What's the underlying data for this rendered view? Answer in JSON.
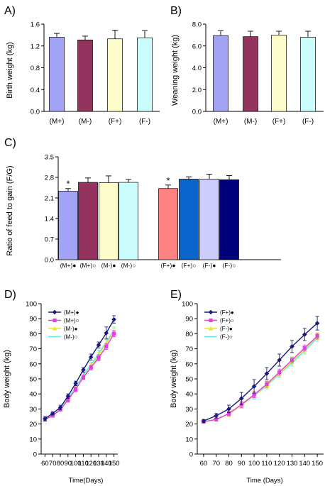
{
  "chart_data": [
    {
      "panel": "A)",
      "type": "bar",
      "ylabel": "Birth weight (kg)",
      "ylim": [
        0,
        1.6
      ],
      "yticks": [
        "0.0",
        "0.4",
        "0.8",
        "1.2",
        "1.6"
      ],
      "categories": [
        "(M+)",
        "(M-)",
        "(F+)",
        "(F-)"
      ],
      "values": [
        1.36,
        1.31,
        1.33,
        1.35
      ],
      "errors": [
        0.07,
        0.07,
        0.16,
        0.13
      ],
      "colors": [
        "#a3a3f5",
        "#93335e",
        "#fdfdcc",
        "#ccfdfd"
      ]
    },
    {
      "panel": "B)",
      "type": "bar",
      "ylabel": "Weaning weight (kg)",
      "ylim": [
        0,
        8.0
      ],
      "yticks": [
        "0.0",
        "2.0",
        "4.0",
        "6.0",
        "8.0"
      ],
      "categories": [
        "(M+)",
        "(M-)",
        "(F+)",
        "(F-)"
      ],
      "values": [
        6.95,
        6.85,
        7.0,
        6.8
      ],
      "errors": [
        0.45,
        0.5,
        0.35,
        0.55
      ],
      "colors": [
        "#a3a3f5",
        "#93335e",
        "#fdfdcc",
        "#ccfdfd"
      ]
    },
    {
      "panel": "C)",
      "type": "bar",
      "ylabel": "Ratio of feed to gain (F/G)",
      "ylim": [
        0,
        3.5
      ],
      "yticks": [
        "0.0",
        "0.7",
        "1.4",
        "2.1",
        "2.8",
        "3.5"
      ],
      "categories": [
        "(M+)●",
        "(M+)○",
        "(M-)●",
        "(M-)○",
        "(F+)●",
        "(F+)○",
        "(F-)●",
        "(F-)○"
      ],
      "values": [
        2.33,
        2.63,
        2.62,
        2.63,
        2.42,
        2.74,
        2.74,
        2.72
      ],
      "errors": [
        0.09,
        0.15,
        0.23,
        0.1,
        0.12,
        0.08,
        0.17,
        0.14
      ],
      "significance": [
        "*",
        "",
        "",
        "",
        "*",
        "",
        "",
        ""
      ],
      "colors": [
        "#a3a3f5",
        "#93335e",
        "#fdfdcc",
        "#ccfdfd",
        "#fd8282",
        "#0a66cc",
        "#ccccfd",
        "#00007a"
      ]
    },
    {
      "panel": "D)",
      "type": "line",
      "xlabel": "Time(Days)",
      "ylabel": "Body weight (kg)",
      "xlim": [
        55,
        155
      ],
      "ylim": [
        0,
        100
      ],
      "x": [
        60,
        70,
        80,
        90,
        100,
        110,
        120,
        130,
        140,
        150
      ],
      "xticks": [
        "60",
        "70",
        "80",
        "90",
        "100",
        "110",
        "120",
        "130",
        "140",
        "150"
      ],
      "yticks": [
        "0",
        "10",
        "20",
        "30",
        "40",
        "50",
        "60",
        "70",
        "80",
        "90",
        "100"
      ],
      "series": [
        {
          "name": "(M+)●",
          "color": "#1a1a7a",
          "marker": "diamond",
          "values": [
            23.5,
            27,
            31,
            38.5,
            47,
            56,
            64.5,
            72.5,
            80.5,
            89.5
          ],
          "errors": [
            1.5,
            1,
            1.5,
            1.5,
            1.5,
            1.5,
            2,
            2,
            4,
            2.5
          ]
        },
        {
          "name": "(M+)○",
          "color": "#e23ee2",
          "marker": "square",
          "values": [
            23,
            25.5,
            29.5,
            36,
            43,
            51,
            57.5,
            64,
            71.5,
            80
          ],
          "errors": [
            1,
            1,
            1,
            1.5,
            1.5,
            1.5,
            1.5,
            2,
            2,
            2
          ]
        },
        {
          "name": "(M-)●",
          "color": "#e8e82a",
          "marker": "triangle",
          "values": [
            23,
            25.5,
            29.5,
            36.5,
            43.5,
            51,
            58.5,
            65.5,
            73.5,
            81.5
          ],
          "errors": [
            1,
            1,
            1,
            1.5,
            1.5,
            1.5,
            1.5,
            2,
            2,
            2
          ]
        },
        {
          "name": "(M-)○",
          "color": "#5ee8f0",
          "marker": "none",
          "values": [
            23,
            25.5,
            30,
            37,
            44.5,
            52.5,
            59.5,
            67,
            74.5,
            82.5
          ],
          "errors": [
            1,
            1,
            1,
            1.5,
            1.5,
            1.5,
            1.5,
            2,
            2,
            2
          ]
        }
      ]
    },
    {
      "panel": "E)",
      "type": "line",
      "xlabel": "Time (Days)",
      "ylabel": "Body weight (kg)",
      "xlim": [
        55,
        155
      ],
      "ylim": [
        0,
        100
      ],
      "x": [
        60,
        70,
        80,
        90,
        100,
        110,
        120,
        130,
        140,
        150
      ],
      "xticks": [
        "60",
        "70",
        "80",
        "90",
        "100",
        "110",
        "120",
        "130",
        "140",
        "150"
      ],
      "yticks": [
        "0",
        "10",
        "20",
        "30",
        "40",
        "50",
        "60",
        "70",
        "80",
        "90",
        "100"
      ],
      "series": [
        {
          "name": "(F+)●",
          "color": "#1a1a7a",
          "marker": "diamond",
          "values": [
            22,
            25.5,
            30,
            37,
            45,
            53.5,
            62.5,
            71.5,
            79.5,
            87
          ],
          "errors": [
            1,
            1.5,
            2.5,
            4,
            4.5,
            4,
            4,
            4,
            4,
            4.5
          ]
        },
        {
          "name": "(F+)○",
          "color": "#e23ee2",
          "marker": "square",
          "values": [
            21.5,
            23,
            27,
            33,
            39.5,
            46.5,
            54.5,
            62.5,
            70.5,
            78.5
          ],
          "errors": [
            1,
            1,
            1.5,
            2,
            2,
            2,
            2,
            2,
            2,
            2
          ]
        },
        {
          "name": "(F-)●",
          "color": "#e8e82a",
          "marker": "triangle",
          "values": [
            21.5,
            23,
            26.5,
            32.5,
            39,
            46,
            53.5,
            61.5,
            69.5,
            78
          ],
          "errors": [
            1,
            1,
            1.5,
            2,
            2,
            2,
            2,
            2,
            2,
            2
          ]
        },
        {
          "name": "(F-)○",
          "color": "#5ee8f0",
          "marker": "none",
          "values": [
            21.5,
            23,
            26.5,
            32.5,
            38.5,
            45.5,
            53,
            60.5,
            68.5,
            77
          ],
          "errors": [
            1,
            1,
            1.5,
            2,
            2,
            2,
            2,
            2,
            2,
            2
          ]
        }
      ]
    }
  ]
}
